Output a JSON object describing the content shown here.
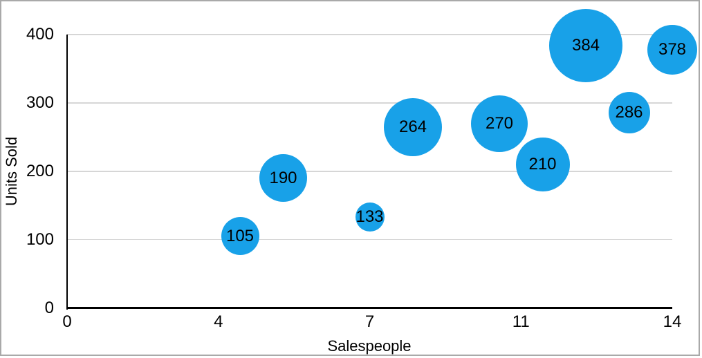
{
  "chart_data": {
    "type": "scatter",
    "subtype": "bubble",
    "xlabel": "Salespeople",
    "ylabel": "Units Sold",
    "xlim": [
      0,
      14
    ],
    "ylim": [
      0,
      400
    ],
    "grid": "horizontal-only",
    "legend": "none",
    "x_ticks": [
      {
        "value": 0,
        "label": "0"
      },
      {
        "value": 3.5,
        "label": "4"
      },
      {
        "value": 7,
        "label": "7"
      },
      {
        "value": 10.5,
        "label": "11"
      },
      {
        "value": 14,
        "label": "14"
      }
    ],
    "y_ticks": [
      {
        "value": 0,
        "label": "0"
      },
      {
        "value": 100,
        "label": "100"
      },
      {
        "value": 200,
        "label": "200"
      },
      {
        "value": 300,
        "label": "300"
      },
      {
        "value": 400,
        "label": "400"
      }
    ],
    "series": [
      {
        "name": "Units Sold",
        "points": [
          {
            "x": 4,
            "y": 105,
            "label": "105",
            "radius_px": 27.5
          },
          {
            "x": 5,
            "y": 190,
            "label": "190",
            "radius_px": 34.5
          },
          {
            "x": 7,
            "y": 133,
            "label": "133",
            "radius_px": 21
          },
          {
            "x": 8,
            "y": 264,
            "label": "264",
            "radius_px": 42
          },
          {
            "x": 10,
            "y": 270,
            "label": "270",
            "radius_px": 41
          },
          {
            "x": 11,
            "y": 210,
            "label": "210",
            "radius_px": 39
          },
          {
            "x": 12,
            "y": 384,
            "label": "384",
            "radius_px": 53
          },
          {
            "x": 13,
            "y": 286,
            "label": "286",
            "radius_px": 30
          },
          {
            "x": 14,
            "y": 378,
            "label": "378",
            "radius_px": 36
          }
        ]
      }
    ],
    "colors": {
      "bubble_fill": "#18A1E8",
      "bubble_label": "#000000",
      "gridline": "#D6D6D6",
      "axis_line": "#000000",
      "tick_label": "#000000",
      "frame_border": "#A9A9A9",
      "background": "#FFFFFF"
    }
  }
}
